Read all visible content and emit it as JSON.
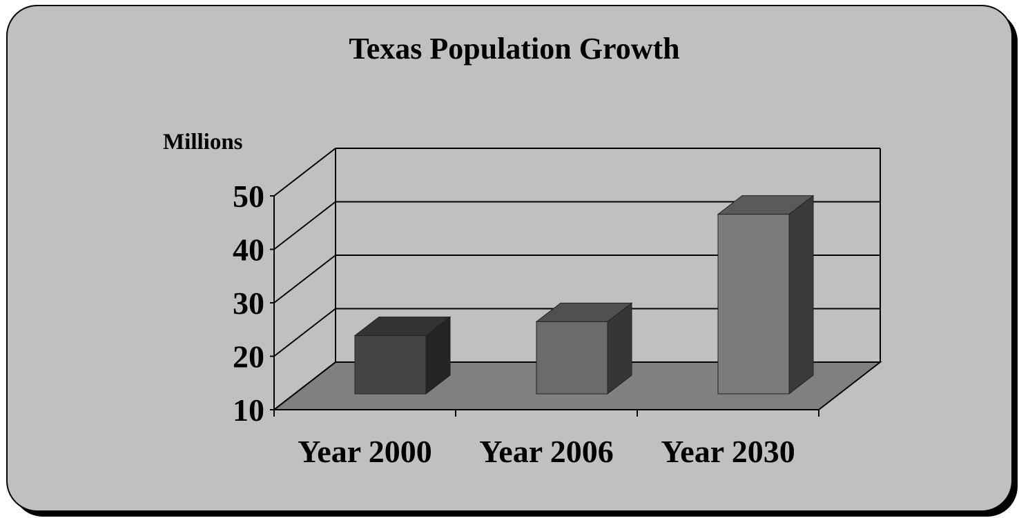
{
  "chart_data": {
    "type": "bar",
    "title": "Texas Population Growth",
    "xlabel": "",
    "ylabel": "Millions",
    "categories": [
      "Year 2000",
      "Year 2006",
      "Year 2030"
    ],
    "values": [
      20.9,
      23.5,
      43.6
    ],
    "ylim": [
      10,
      50
    ],
    "yticks": [
      "10",
      "20",
      "30",
      "40",
      "50"
    ],
    "grid": true,
    "legend": "none",
    "colors": {
      "background": "#c0c0c0",
      "floor": "#808080",
      "bars": [
        {
          "front": "#444444",
          "top": "#333333",
          "side": "#242424"
        },
        {
          "front": "#6b6b6b",
          "top": "#505050",
          "side": "#363636"
        },
        {
          "front": "#7a7a7a",
          "top": "#5a5a5a",
          "side": "#3a3a3a"
        }
      ]
    }
  }
}
